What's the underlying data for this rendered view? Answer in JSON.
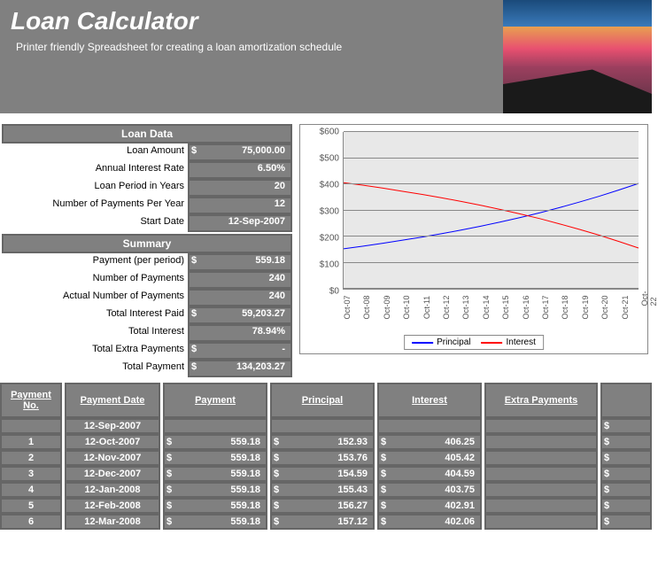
{
  "header": {
    "title": "Loan Calculator",
    "subtitle": "Printer friendly Spreadsheet for creating a loan amortization schedule"
  },
  "loan_data": {
    "heading": "Loan Data",
    "rows": [
      {
        "label": "Loan Amount",
        "cur": "$",
        "val": "75,000.00"
      },
      {
        "label": "Annual Interest Rate",
        "cur": "",
        "val": "6.50%"
      },
      {
        "label": "Loan Period in Years",
        "cur": "",
        "val": "20"
      },
      {
        "label": "Number of Payments Per Year",
        "cur": "",
        "val": "12"
      },
      {
        "label": "Start Date",
        "cur": "",
        "val": "12-Sep-2007"
      }
    ]
  },
  "summary": {
    "heading": "Summary",
    "rows": [
      {
        "label": "Payment (per period)",
        "cur": "$",
        "val": "559.18"
      },
      {
        "label": "Number of Payments",
        "cur": "",
        "val": "240"
      },
      {
        "label": "Actual Number of Payments",
        "cur": "",
        "val": "240"
      },
      {
        "label": "Total Interest Paid",
        "cur": "$",
        "val": "59,203.27"
      },
      {
        "label": "Total Interest",
        "cur": "",
        "val": "78.94%"
      },
      {
        "label": "Total Extra Payments",
        "cur": "$",
        "val": "-"
      },
      {
        "label": "Total Payment",
        "cur": "$",
        "val": "134,203.27"
      }
    ]
  },
  "chart": {
    "type": "line",
    "ylim": [
      0,
      600
    ],
    "ytick_step": 100,
    "ylabels": [
      "$0",
      "$100",
      "$200",
      "$300",
      "$400",
      "$500",
      "$600"
    ],
    "xlabels": [
      "Oct-07",
      "Oct-08",
      "Oct-09",
      "Oct-10",
      "Oct-11",
      "Oct-12",
      "Oct-13",
      "Oct-14",
      "Oct-15",
      "Oct-16",
      "Oct-17",
      "Oct-18",
      "Oct-19",
      "Oct-20",
      "Oct-21",
      "Oct-22"
    ],
    "series": [
      {
        "name": "Principal",
        "color": "#0000ff",
        "values": [
          153,
          163,
          174,
          186,
          198,
          211,
          225,
          240,
          256,
          273,
          291,
          311,
          332,
          354,
          378,
          403
        ]
      },
      {
        "name": "Interest",
        "color": "#ff0000",
        "values": [
          406,
          396,
          385,
          373,
          361,
          348,
          334,
          319,
          303,
          286,
          268,
          248,
          227,
          205,
          181,
          156
        ]
      }
    ],
    "background_color": "#e8e8e8",
    "grid_color": "#888888",
    "legend_labels": {
      "principal": "Principal",
      "interest": "Interest"
    }
  },
  "schedule": {
    "columns": [
      "Payment No.",
      "Payment Date",
      "Payment",
      "Principal",
      "Interest",
      "Extra Payments"
    ],
    "start_date": "12-Sep-2007",
    "rows": [
      {
        "no": "1",
        "date": "12-Oct-2007",
        "pay": "559.18",
        "prin": "152.93",
        "int": "406.25"
      },
      {
        "no": "2",
        "date": "12-Nov-2007",
        "pay": "559.18",
        "prin": "153.76",
        "int": "405.42"
      },
      {
        "no": "3",
        "date": "12-Dec-2007",
        "pay": "559.18",
        "prin": "154.59",
        "int": "404.59"
      },
      {
        "no": "4",
        "date": "12-Jan-2008",
        "pay": "559.18",
        "prin": "155.43",
        "int": "403.75"
      },
      {
        "no": "5",
        "date": "12-Feb-2008",
        "pay": "559.18",
        "prin": "156.27",
        "int": "402.91"
      },
      {
        "no": "6",
        "date": "12-Mar-2008",
        "pay": "559.18",
        "prin": "157.12",
        "int": "402.06"
      }
    ]
  }
}
